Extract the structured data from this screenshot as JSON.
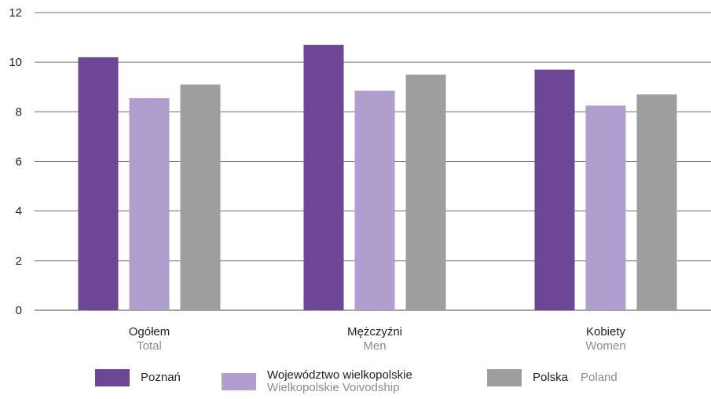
{
  "chart_data": {
    "type": "bar",
    "categories": [
      {
        "label": "Ogółem",
        "sublabel": "Total"
      },
      {
        "label": "Mężczyźni",
        "sublabel": "Men"
      },
      {
        "label": "Kobiety",
        "sublabel": "Women"
      }
    ],
    "series": [
      {
        "name": "Poznań",
        "name_en": "",
        "color": "#6e4696",
        "values": [
          10.2,
          10.7,
          9.7
        ]
      },
      {
        "name": "Województwo wielkopolskie",
        "name_en": "Wielkopolskie Voivodship",
        "color": "#b09ecf",
        "values": [
          8.55,
          8.85,
          8.25
        ]
      },
      {
        "name": "Polska",
        "name_en": "Poland",
        "color": "#9e9e9e",
        "values": [
          9.1,
          9.5,
          8.7
        ]
      }
    ],
    "yticks": [
      0,
      2,
      4,
      6,
      8,
      10,
      12
    ],
    "ylim": [
      0,
      12
    ],
    "grid": true,
    "legend_position": "bottom",
    "title": "",
    "xlabel": "",
    "ylabel": ""
  }
}
